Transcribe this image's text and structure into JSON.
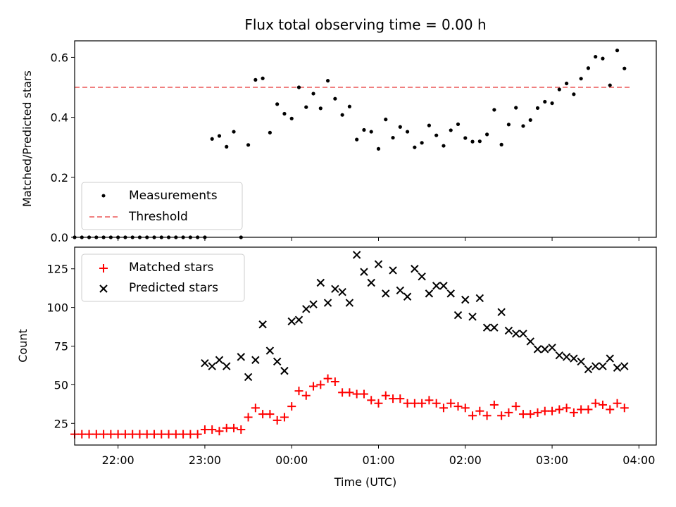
{
  "chart_data": [
    {
      "type": "scatter",
      "title": "Flux total observing time = 0.00 h",
      "xlabel": "",
      "ylabel": "Matched/Predicted stars",
      "xlim": [
        "21:30",
        "04:12"
      ],
      "ylim": [
        0,
        0.655
      ],
      "y_ticks": [
        "0.0",
        "0.2",
        "0.4",
        "0.6"
      ],
      "y_tick_values": [
        0.0,
        0.2,
        0.4,
        0.6
      ],
      "x_tick_labels_shown": false,
      "legend_position": "lower-left",
      "legend": [
        "Measurements",
        "Threshold"
      ],
      "colors": {
        "measurements": "#000000",
        "threshold": "#f08080"
      },
      "series": [
        {
          "name": "Measurements",
          "marker": "dot",
          "points": [
            [
              "21:30",
              0
            ],
            [
              "21:35",
              0
            ],
            [
              "21:40",
              0
            ],
            [
              "21:45",
              0
            ],
            [
              "21:50",
              0
            ],
            [
              "21:55",
              0
            ],
            [
              "22:00",
              0
            ],
            [
              "22:05",
              0
            ],
            [
              "22:10",
              0
            ],
            [
              "22:15",
              0
            ],
            [
              "22:20",
              0
            ],
            [
              "22:25",
              0
            ],
            [
              "22:30",
              0
            ],
            [
              "22:35",
              0
            ],
            [
              "22:40",
              0
            ],
            [
              "22:45",
              0
            ],
            [
              "22:50",
              0
            ],
            [
              "22:55",
              0
            ],
            [
              "23:00",
              0
            ],
            [
              "23:05",
              0.328
            ],
            [
              "23:10",
              0.338
            ],
            [
              "23:15",
              0.302
            ],
            [
              "23:20",
              0.352
            ],
            [
              "23:25",
              0
            ],
            [
              "23:30",
              0.308
            ],
            [
              "23:35",
              0.525
            ],
            [
              "23:40",
              0.53
            ],
            [
              "23:45",
              0.349
            ],
            [
              "23:50",
              0.444
            ],
            [
              "23:55",
              0.412
            ],
            [
              "00:00",
              0.396
            ],
            [
              "00:05",
              0.5
            ],
            [
              "00:10",
              0.434
            ],
            [
              "00:15",
              0.479
            ],
            [
              "00:20",
              0.43
            ],
            [
              "00:25",
              0.522
            ],
            [
              "00:30",
              0.462
            ],
            [
              "00:35",
              0.408
            ],
            [
              "00:40",
              0.436
            ],
            [
              "00:45",
              0.326
            ],
            [
              "00:50",
              0.358
            ],
            [
              "00:55",
              0.352
            ],
            [
              "01:00",
              0.295
            ],
            [
              "01:05",
              0.393
            ],
            [
              "01:10",
              0.332
            ],
            [
              "01:15",
              0.368
            ],
            [
              "01:20",
              0.352
            ],
            [
              "01:25",
              0.3
            ],
            [
              "01:30",
              0.315
            ],
            [
              "01:35",
              0.373
            ],
            [
              "01:40",
              0.34
            ],
            [
              "01:45",
              0.305
            ],
            [
              "01:50",
              0.357
            ],
            [
              "01:55",
              0.377
            ],
            [
              "02:00",
              0.331
            ],
            [
              "02:05",
              0.319
            ],
            [
              "02:10",
              0.32
            ],
            [
              "02:15",
              0.343
            ],
            [
              "02:20",
              0.425
            ],
            [
              "02:25",
              0.309
            ],
            [
              "02:30",
              0.376
            ],
            [
              "02:35",
              0.432
            ],
            [
              "02:40",
              0.371
            ],
            [
              "02:45",
              0.391
            ],
            [
              "02:50",
              0.431
            ],
            [
              "02:55",
              0.452
            ],
            [
              "03:00",
              0.447
            ],
            [
              "03:05",
              0.493
            ],
            [
              "03:10",
              0.513
            ],
            [
              "03:15",
              0.477
            ],
            [
              "03:20",
              0.529
            ],
            [
              "03:25",
              0.564
            ],
            [
              "03:30",
              0.602
            ],
            [
              "03:35",
              0.596
            ],
            [
              "03:40",
              0.507
            ],
            [
              "03:45",
              0.623
            ],
            [
              "03:50",
              0.563
            ]
          ]
        },
        {
          "name": "Threshold",
          "marker": "dashed-line",
          "points": [
            [
              "21:30",
              0.5
            ],
            [
              "03:55",
              0.5
            ]
          ]
        }
      ]
    },
    {
      "type": "scatter",
      "title": "",
      "xlabel": "Time (UTC)",
      "ylabel": "Count",
      "xlim": [
        "21:30",
        "04:12"
      ],
      "ylim": [
        11,
        139
      ],
      "y_ticks": [
        "25",
        "50",
        "75",
        "100",
        "125"
      ],
      "y_tick_values": [
        25,
        50,
        75,
        100,
        125
      ],
      "x_ticks": [
        "22:00",
        "23:00",
        "00:00",
        "01:00",
        "02:00",
        "03:00",
        "04:00"
      ],
      "legend_position": "upper-left",
      "legend": [
        "Matched stars",
        "Predicted stars"
      ],
      "colors": {
        "matched": "#ff0000",
        "predicted": "#000000"
      },
      "series": [
        {
          "name": "Matched stars",
          "marker": "plus",
          "points": [
            [
              "21:30",
              18
            ],
            [
              "21:35",
              18
            ],
            [
              "21:40",
              18
            ],
            [
              "21:45",
              18
            ],
            [
              "21:50",
              18
            ],
            [
              "21:55",
              18
            ],
            [
              "22:00",
              18
            ],
            [
              "22:05",
              18
            ],
            [
              "22:10",
              18
            ],
            [
              "22:15",
              18
            ],
            [
              "22:20",
              18
            ],
            [
              "22:25",
              18
            ],
            [
              "22:30",
              18
            ],
            [
              "22:35",
              18
            ],
            [
              "22:40",
              18
            ],
            [
              "22:45",
              18
            ],
            [
              "22:50",
              18
            ],
            [
              "22:55",
              18
            ],
            [
              "23:00",
              21
            ],
            [
              "23:05",
              21
            ],
            [
              "23:10",
              20
            ],
            [
              "23:15",
              22
            ],
            [
              "23:20",
              22
            ],
            [
              "23:25",
              21
            ],
            [
              "23:30",
              29
            ],
            [
              "23:35",
              35
            ],
            [
              "23:40",
              31
            ],
            [
              "23:45",
              31
            ],
            [
              "23:50",
              27
            ],
            [
              "23:55",
              29
            ],
            [
              "00:00",
              36
            ],
            [
              "00:05",
              46
            ],
            [
              "00:10",
              43
            ],
            [
              "00:15",
              49
            ],
            [
              "00:20",
              50
            ],
            [
              "00:25",
              54
            ],
            [
              "00:30",
              52
            ],
            [
              "00:35",
              45
            ],
            [
              "00:40",
              45
            ],
            [
              "00:45",
              44
            ],
            [
              "00:50",
              44
            ],
            [
              "00:55",
              40
            ],
            [
              "01:00",
              38
            ],
            [
              "01:05",
              43
            ],
            [
              "01:10",
              41
            ],
            [
              "01:15",
              41
            ],
            [
              "01:20",
              38
            ],
            [
              "01:25",
              38
            ],
            [
              "01:30",
              38
            ],
            [
              "01:35",
              40
            ],
            [
              "01:40",
              38
            ],
            [
              "01:45",
              35
            ],
            [
              "01:50",
              38
            ],
            [
              "01:55",
              36
            ],
            [
              "02:00",
              35
            ],
            [
              "02:05",
              30
            ],
            [
              "02:10",
              33
            ],
            [
              "02:15",
              30
            ],
            [
              "02:20",
              37
            ],
            [
              "02:25",
              30
            ],
            [
              "02:30",
              32
            ],
            [
              "02:35",
              36
            ],
            [
              "02:40",
              31
            ],
            [
              "02:45",
              31
            ],
            [
              "02:50",
              32
            ],
            [
              "02:55",
              33
            ],
            [
              "03:00",
              33
            ],
            [
              "03:05",
              34
            ],
            [
              "03:10",
              35
            ],
            [
              "03:15",
              32
            ],
            [
              "03:20",
              34
            ],
            [
              "03:25",
              34
            ],
            [
              "03:30",
              38
            ],
            [
              "03:35",
              37
            ],
            [
              "03:40",
              34
            ],
            [
              "03:45",
              38
            ],
            [
              "03:50",
              35
            ]
          ]
        },
        {
          "name": "Predicted stars",
          "marker": "x",
          "points": [
            [
              "23:00",
              64
            ],
            [
              "23:05",
              62
            ],
            [
              "23:10",
              66
            ],
            [
              "23:15",
              62
            ],
            [
              "23:25",
              68
            ],
            [
              "23:30",
              55
            ],
            [
              "23:35",
              66
            ],
            [
              "23:40",
              89
            ],
            [
              "23:45",
              72
            ],
            [
              "23:50",
              65
            ],
            [
              "23:55",
              59
            ],
            [
              "00:00",
              91
            ],
            [
              "00:05",
              92
            ],
            [
              "00:10",
              99
            ],
            [
              "00:15",
              102
            ],
            [
              "00:20",
              116
            ],
            [
              "00:25",
              103
            ],
            [
              "00:30",
              112
            ],
            [
              "00:35",
              110
            ],
            [
              "00:40",
              103
            ],
            [
              "00:45",
              134
            ],
            [
              "00:50",
              123
            ],
            [
              "00:55",
              116
            ],
            [
              "01:00",
              128
            ],
            [
              "01:05",
              109
            ],
            [
              "01:10",
              124
            ],
            [
              "01:15",
              111
            ],
            [
              "01:20",
              107
            ],
            [
              "01:25",
              125
            ],
            [
              "01:30",
              120
            ],
            [
              "01:35",
              109
            ],
            [
              "01:40",
              114
            ],
            [
              "01:45",
              114
            ],
            [
              "01:50",
              109
            ],
            [
              "01:55",
              95
            ],
            [
              "02:00",
              105
            ],
            [
              "02:05",
              94
            ],
            [
              "02:10",
              106
            ],
            [
              "02:15",
              87
            ],
            [
              "02:20",
              87
            ],
            [
              "02:25",
              97
            ],
            [
              "02:30",
              85
            ],
            [
              "02:35",
              83
            ],
            [
              "02:40",
              83
            ],
            [
              "02:45",
              78
            ],
            [
              "02:50",
              73
            ],
            [
              "02:55",
              73
            ],
            [
              "03:00",
              74
            ],
            [
              "03:05",
              69
            ],
            [
              "03:10",
              68
            ],
            [
              "03:15",
              67
            ],
            [
              "03:20",
              65
            ],
            [
              "03:25",
              60
            ],
            [
              "03:30",
              62
            ],
            [
              "03:35",
              62
            ],
            [
              "03:40",
              67
            ],
            [
              "03:45",
              61
            ],
            [
              "03:50",
              62
            ]
          ]
        }
      ]
    }
  ]
}
